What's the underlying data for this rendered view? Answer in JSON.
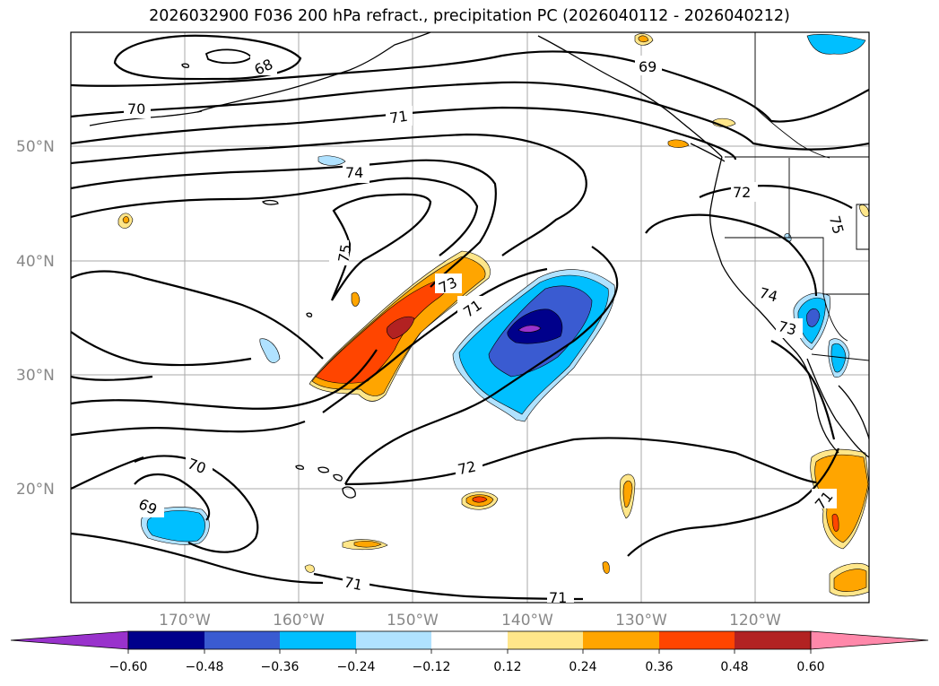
{
  "title": "2026032900 F036 200 hPa refract., precipitation PC (2026040112 - 2026040212)",
  "map": {
    "lat_labels": [
      "50°N",
      "40°N",
      "30°N",
      "20°N"
    ],
    "lon_labels": [
      "170°W",
      "160°W",
      "150°W",
      "140°W",
      "130°W",
      "120°W"
    ],
    "gridlines": true,
    "contour_labels": [
      "68",
      "69",
      "70",
      "71",
      "71",
      "72",
      "72",
      "73",
      "73",
      "74",
      "74",
      "75",
      "75",
      "69",
      "70",
      "71",
      "71",
      "71"
    ]
  },
  "colorbar": {
    "ticks": [
      "−0.60",
      "−0.48",
      "−0.36",
      "−0.24",
      "−0.12",
      "0.12",
      "0.24",
      "0.36",
      "0.48",
      "0.60"
    ],
    "colors": [
      "#9932cc",
      "#00008b",
      "#3a5bd1",
      "#00bfff",
      "#b0e2ff",
      "#ffffff",
      "#ffe68a",
      "#ffa500",
      "#ff4500",
      "#b22222",
      "#ff88aa"
    ],
    "extend": "both"
  }
}
